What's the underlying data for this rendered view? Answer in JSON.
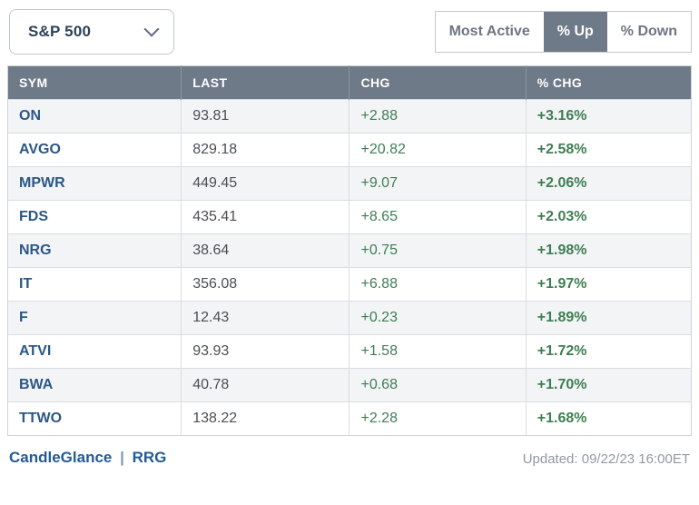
{
  "toolbar": {
    "index_select": {
      "value": "S&P 500"
    },
    "buttons": [
      {
        "label": "Most Active",
        "active": false
      },
      {
        "label": "% Up",
        "active": true
      },
      {
        "label": "% Down",
        "active": false
      }
    ]
  },
  "table": {
    "columns": [
      "SYM",
      "LAST",
      "CHG",
      "% CHG"
    ],
    "rows": [
      {
        "sym": "ON",
        "last": "93.81",
        "chg": "+2.88",
        "pct": "+3.16%"
      },
      {
        "sym": "AVGO",
        "last": "829.18",
        "chg": "+20.82",
        "pct": "+2.58%"
      },
      {
        "sym": "MPWR",
        "last": "449.45",
        "chg": "+9.07",
        "pct": "+2.06%"
      },
      {
        "sym": "FDS",
        "last": "435.41",
        "chg": "+8.65",
        "pct": "+2.03%"
      },
      {
        "sym": "NRG",
        "last": "38.64",
        "chg": "+0.75",
        "pct": "+1.98%"
      },
      {
        "sym": "IT",
        "last": "356.08",
        "chg": "+6.88",
        "pct": "+1.97%"
      },
      {
        "sym": "F",
        "last": "12.43",
        "chg": "+0.23",
        "pct": "+1.89%"
      },
      {
        "sym": "ATVI",
        "last": "93.93",
        "chg": "+1.58",
        "pct": "+1.72%"
      },
      {
        "sym": "BWA",
        "last": "40.78",
        "chg": "+0.68",
        "pct": "+1.70%"
      },
      {
        "sym": "TTWO",
        "last": "138.22",
        "chg": "+2.28",
        "pct": "+1.68%"
      }
    ]
  },
  "footer": {
    "link_candleglance": "CandleGlance",
    "separator": "|",
    "link_rrg": "RRG",
    "updated": "Updated: 09/22/23 16:00ET"
  },
  "colors": {
    "header_bg": "#6f7a88",
    "selected_button_bg": "#6f7a88",
    "row_alt_bg": "#f2f4f6",
    "symbol_link": "#2b5787",
    "positive_green": "#3f7e53",
    "footer_link": "#255a96",
    "muted_text": "#9199a3"
  }
}
